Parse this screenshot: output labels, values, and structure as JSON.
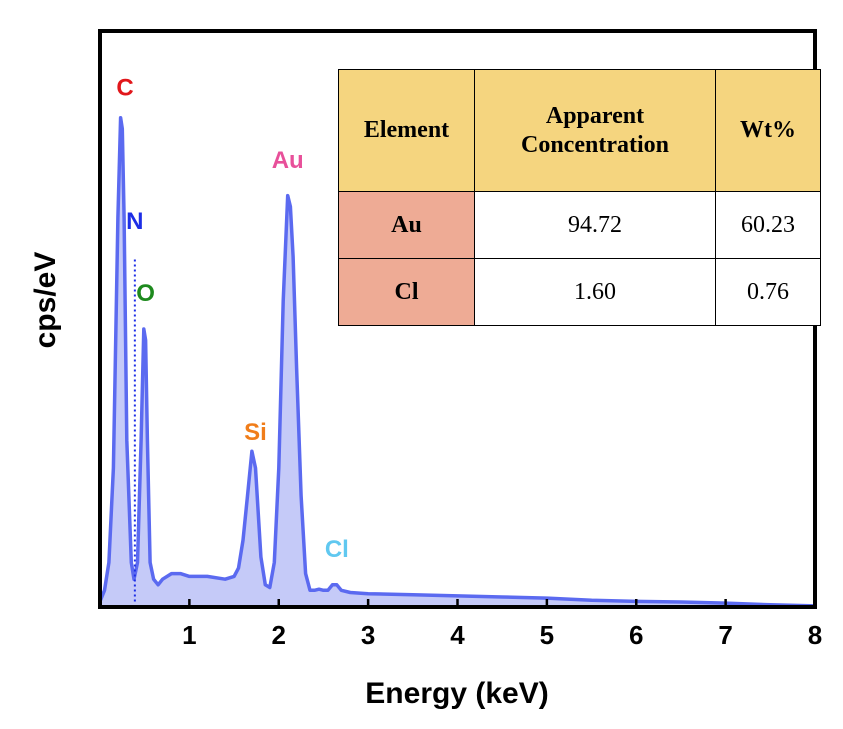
{
  "chart_data": {
    "type": "area",
    "xlabel": "Energy (keV)",
    "ylabel": "cps/eV",
    "xlim": [
      0,
      8
    ],
    "xticks": [
      1,
      2,
      3,
      4,
      5,
      6,
      7,
      8
    ],
    "ylim": [
      0,
      100
    ],
    "y_ticks_shown": false,
    "grid": false,
    "legend": "none",
    "series": [
      {
        "color": "#5b6af0",
        "fill": "#c5caf8",
        "x": [
          0.0,
          0.05,
          0.1,
          0.15,
          0.2,
          0.23,
          0.25,
          0.27,
          0.3,
          0.35,
          0.38,
          0.42,
          0.46,
          0.49,
          0.51,
          0.53,
          0.56,
          0.6,
          0.65,
          0.7,
          0.8,
          0.9,
          1.0,
          1.2,
          1.4,
          1.5,
          1.55,
          1.6,
          1.65,
          1.7,
          1.74,
          1.77,
          1.8,
          1.85,
          1.9,
          1.95,
          2.0,
          2.05,
          2.1,
          2.13,
          2.16,
          2.2,
          2.25,
          2.3,
          2.35,
          2.4,
          2.45,
          2.5,
          2.55,
          2.6,
          2.65,
          2.7,
          2.8,
          3.0,
          3.5,
          4.0,
          4.5,
          5.0,
          5.5,
          6.0,
          6.5,
          7.0,
          7.5,
          8.0
        ],
        "y": [
          1,
          3,
          8,
          25,
          70,
          88,
          86,
          70,
          30,
          8,
          5,
          8,
          30,
          50,
          48,
          30,
          8,
          5,
          4,
          5,
          6,
          6,
          5.5,
          5.5,
          5,
          5.5,
          7,
          12,
          20,
          28,
          25,
          17,
          9,
          4,
          3.5,
          8,
          25,
          55,
          74,
          72,
          63,
          43,
          20,
          6,
          3,
          3,
          3.2,
          3,
          3,
          4,
          4,
          3,
          2.6,
          2.4,
          2.2,
          2.0,
          1.8,
          1.6,
          1.2,
          1.0,
          0.9,
          0.7,
          0.4,
          0.2
        ]
      }
    ],
    "annotations": [
      {
        "text": "C",
        "x": 0.28,
        "y": 92,
        "color": "#e1171b"
      },
      {
        "text": "N",
        "x": 0.39,
        "y": 68,
        "color": "#1d2ee6"
      },
      {
        "text": "O",
        "x": 0.51,
        "y": 55,
        "color": "#1e8a1e"
      },
      {
        "text": "Si",
        "x": 1.74,
        "y": 30,
        "color": "#f07d1a"
      },
      {
        "text": "Au",
        "x": 2.1,
        "y": 79,
        "color": "#e8509a"
      },
      {
        "text": "Cl",
        "x": 2.65,
        "y": 9,
        "color": "#60c8f0"
      }
    ],
    "marker_line": {
      "x": 0.39,
      "y_from": 1,
      "y_to": 63,
      "color": "#1d2ee6"
    }
  },
  "table": {
    "headers": [
      "Element",
      "Apparent Concentration",
      "Wt%"
    ],
    "rows": [
      {
        "element": "Au",
        "apparent": "94.72",
        "wt": "60.23"
      },
      {
        "element": "Cl",
        "apparent": "1.60",
        "wt": "0.76"
      }
    ]
  }
}
